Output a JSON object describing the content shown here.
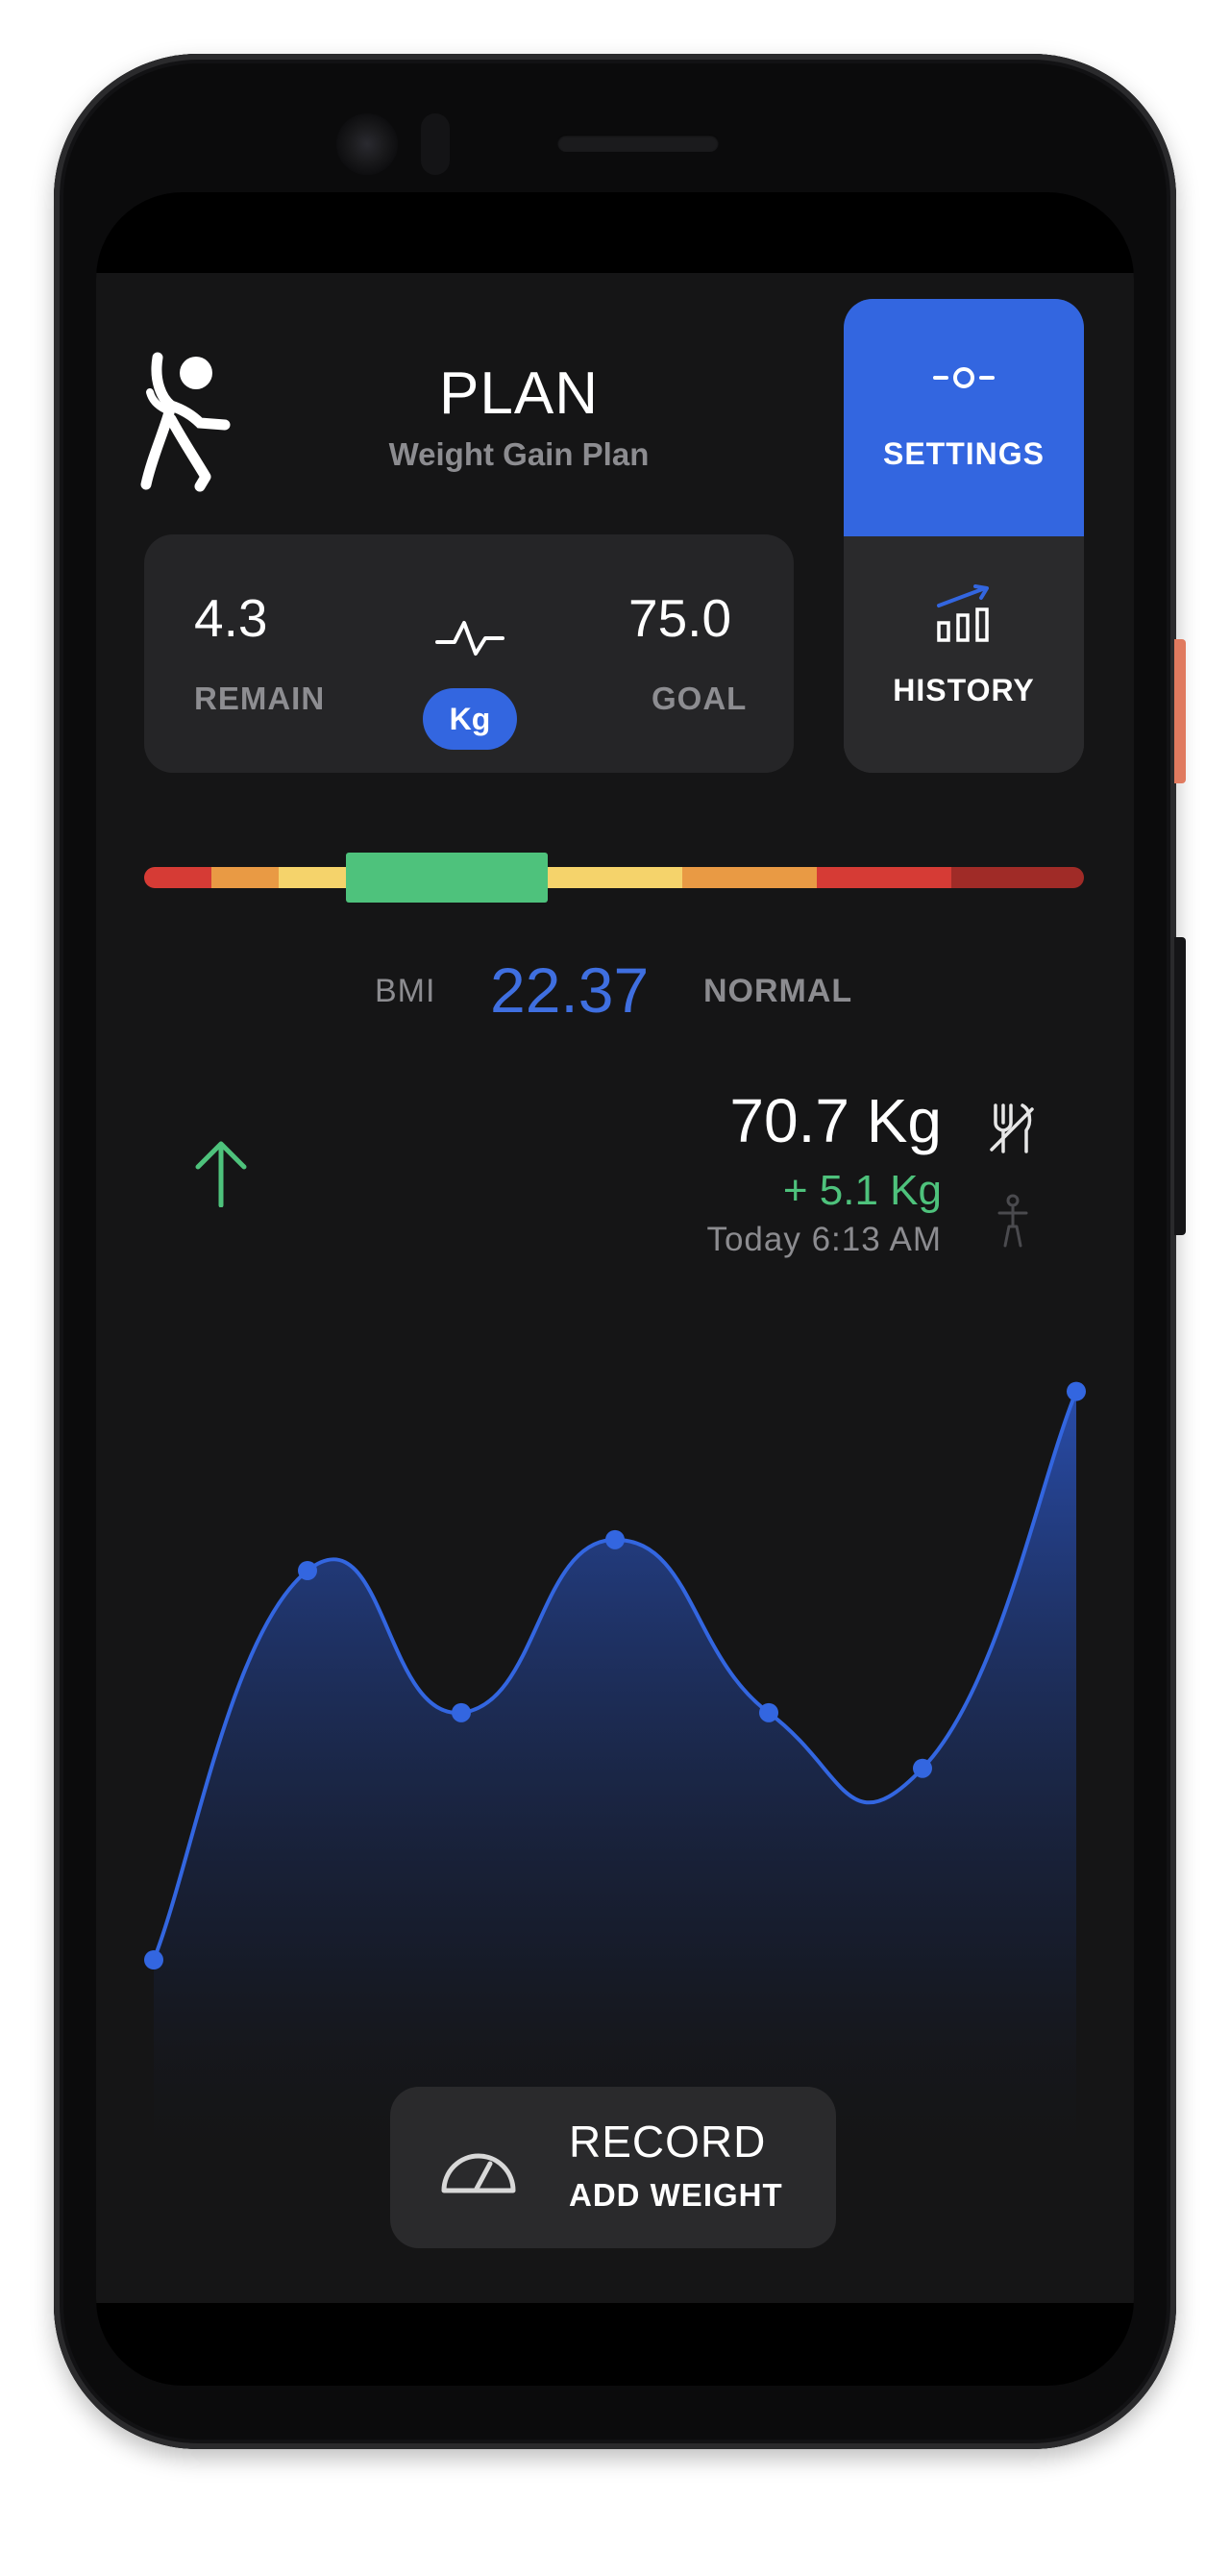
{
  "header": {
    "title": "PLAN",
    "subtitle": "Weight Gain Plan",
    "logo_icon": "stretching-person-icon"
  },
  "stats": {
    "remain_value": "4.3",
    "remain_label": "REMAIN",
    "goal_value": "75.0",
    "goal_label": "GOAL",
    "unit": "Kg",
    "pulse_icon": "pulse-icon"
  },
  "side_panel": {
    "settings_label": "SETTINGS",
    "settings_icon": "slider-icon",
    "history_label": "HISTORY",
    "history_icon": "bar-chart-trend-icon"
  },
  "bmi": {
    "label": "BMI",
    "value": "22.37",
    "status": "NORMAL",
    "segments": [
      "#d63b35",
      "#e99a44",
      "#f5d36b",
      "#4ec27c",
      "#f5d36b",
      "#e99a44",
      "#d63b35",
      "#a02b27"
    ]
  },
  "current": {
    "weight": "70.7 Kg",
    "delta": "+  5.1 Kg",
    "timestamp": "Today 6:13 AM",
    "trend_icon": "arrow-up-icon",
    "food_icon": "utensils-off-icon",
    "person_icon": "person-icon"
  },
  "chart_data": {
    "type": "area",
    "values": [
      61.5,
      67.8,
      65.5,
      68.3,
      65.5,
      64.6,
      70.7
    ],
    "ylim": [
      58,
      72
    ],
    "grid": false,
    "color": "#3366e0"
  },
  "record": {
    "title": "RECORD",
    "subtitle": "ADD WEIGHT",
    "icon": "speedometer-icon"
  },
  "colors": {
    "accent": "#3366e0",
    "background": "#151516",
    "card": "#252527",
    "positive": "#4ec27c"
  }
}
